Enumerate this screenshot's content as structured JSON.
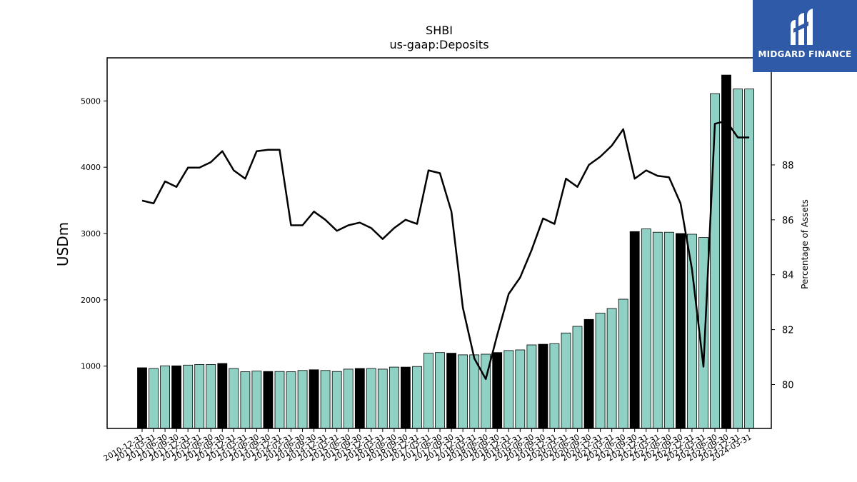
{
  "title": "SHBI",
  "subtitle": "us-gaap:Deposits",
  "brand": {
    "name": "MIDGARD FINANCE",
    "color": "#2f5aa8",
    "icon": "midgard-logo-icon"
  },
  "colors": {
    "bar_normal": "#8fd1c4",
    "bar_highlight": "#000000",
    "line": "#000000"
  },
  "chart_data": {
    "type": "bar",
    "title": "SHBI",
    "subtitle": "us-gaap:Deposits",
    "ylabel": "USDm",
    "y2label": "Percentage of Assets",
    "ylim": [
      60,
      5650
    ],
    "y2lim": [
      78.4,
      91.9
    ],
    "yticks": [
      1000,
      2000,
      3000,
      4000,
      5000
    ],
    "y2ticks": [
      80,
      82,
      84,
      86,
      88
    ],
    "grid": false,
    "categories": [
      "2010-12-31",
      "2011-03-31",
      "2011-06-30",
      "2011-09-30",
      "2011-12-31",
      "2012-03-31",
      "2012-06-30",
      "2012-09-30",
      "2012-12-31",
      "2013-03-31",
      "2013-06-30",
      "2013-09-30",
      "2013-12-31",
      "2014-03-31",
      "2014-06-30",
      "2014-09-30",
      "2014-12-31",
      "2015-03-31",
      "2015-06-30",
      "2015-09-30",
      "2015-12-31",
      "2016-03-31",
      "2016-06-30",
      "2016-09-30",
      "2016-12-31",
      "2017-03-31",
      "2017-06-30",
      "2017-09-30",
      "2017-12-31",
      "2018-03-31",
      "2018-06-30",
      "2018-09-30",
      "2018-12-31",
      "2019-03-31",
      "2019-06-30",
      "2019-09-30",
      "2019-12-31",
      "2020-03-31",
      "2020-06-30",
      "2020-09-30",
      "2020-12-31",
      "2021-03-31",
      "2021-06-30",
      "2021-09-30",
      "2021-12-31",
      "2022-03-31",
      "2022-06-30",
      "2022-09-30",
      "2022-12-31",
      "2023-03-31",
      "2023-06-30",
      "2023-09-30",
      "2023-12-31",
      "2024-03-31"
    ],
    "tick_labels": [
      "2010-12-31",
      "2011-03-31",
      "2011-06-30",
      "2011-09-30",
      "2011-12-31",
      "2012-03-31",
      "2012-06-30",
      "2012-09-30",
      "2012-12-31",
      "2013-03-31",
      "2013-06-30",
      "2013-09-30",
      "2013-12-31",
      "2014-03-31",
      "2014-06-30",
      "2014-09-30",
      "2014-12-31",
      "2015-03-31",
      "2015-06-30",
      "2015-09-30",
      "2015-12-31",
      "2016-03-31",
      "2016-06-30",
      "2016-09-30",
      "2016-12-31",
      "2017-03-31",
      "2017-06-30",
      "2017-09-30",
      "2017-12-31",
      "2018-03-31",
      "2018-06-30",
      "2018-09-30",
      "2018-12-31",
      "2019-03-31",
      "2019-06-30",
      "2019-09-30",
      "2019-12-31",
      "2020-03-31",
      "2020-06-30",
      "2020-09-30",
      "2020-12-31",
      "2021-03-31",
      "2021-06-30",
      "2021-09-30",
      "2021-12-31",
      "2022-03-31",
      "2022-06-30",
      "2022-09-30",
      "2022-12-31",
      "2023-03-31",
      "2023-06-30",
      "2023-09-30",
      "2023-12-31",
      "2024-03-31"
    ],
    "series": [
      {
        "type": "bar",
        "values": [
          975,
          965,
          1005,
          1005,
          1015,
          1025,
          1025,
          1040,
          965,
          915,
          925,
          920,
          920,
          915,
          935,
          945,
          935,
          920,
          955,
          965,
          965,
          955,
          985,
          985,
          995,
          1195,
          1205,
          1195,
          1170,
          1170,
          1180,
          1205,
          1235,
          1245,
          1320,
          1330,
          1340,
          1500,
          1600,
          1705,
          1800,
          1870,
          2010,
          3030,
          3070,
          3020,
          3020,
          3000,
          2990,
          2940,
          5110,
          5390,
          5180,
          5180
        ],
        "highlight": [
          true,
          false,
          false,
          true,
          false,
          false,
          false,
          true,
          false,
          false,
          false,
          true,
          false,
          false,
          false,
          true,
          false,
          false,
          false,
          true,
          false,
          false,
          false,
          true,
          false,
          false,
          false,
          true,
          false,
          false,
          false,
          true,
          false,
          false,
          false,
          true,
          false,
          false,
          false,
          true,
          false,
          false,
          false,
          true,
          false,
          false,
          false,
          true,
          false,
          false,
          false,
          true,
          false,
          false
        ]
      },
      {
        "type": "line",
        "axis": "right",
        "values": [
          86.7,
          86.6,
          87.4,
          87.2,
          87.9,
          87.9,
          88.1,
          88.5,
          87.8,
          87.5,
          88.5,
          88.55,
          88.55,
          85.8,
          85.8,
          86.3,
          86.0,
          85.6,
          85.8,
          85.9,
          85.7,
          85.3,
          85.7,
          86.0,
          85.85,
          87.8,
          87.7,
          86.3,
          82.8,
          80.95,
          80.2,
          81.8,
          83.3,
          83.9,
          84.9,
          86.05,
          85.85,
          87.5,
          87.2,
          88.0,
          88.3,
          88.7,
          89.3,
          87.5,
          87.8,
          87.6,
          87.55,
          86.6,
          84.2,
          80.65,
          89.5,
          89.6,
          89.0,
          89.0
        ]
      }
    ]
  }
}
